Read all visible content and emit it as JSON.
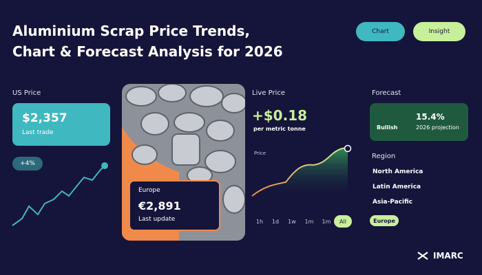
{
  "header": {
    "title_lines": [
      "Aluminium Scrap Price Trends,",
      "Chart & Forecast Analysis for 2026"
    ],
    "buttons": [
      "Chart",
      "Insight"
    ]
  },
  "us_price": {
    "label": "US Price",
    "value": "$2,357",
    "caption": "Last trade",
    "change": "+4%"
  },
  "europe": {
    "label": "Europe",
    "value": "€2,891",
    "caption": "Last update"
  },
  "live_price": {
    "label": "Live Price",
    "value": "+$0.18",
    "unit": "per metric tonne",
    "chart_label": "Price",
    "periods": [
      "1h",
      "1d",
      "1w",
      "1m",
      "1m",
      "All"
    ]
  },
  "forecast": {
    "label": "Forecast",
    "trend": "Bullish",
    "value": "15.4%",
    "caption": "2026 projection"
  },
  "region": {
    "label": "Region",
    "items": [
      "North America",
      "Latin America",
      "Asia-Pacific",
      "Europe"
    ]
  },
  "brand": "IMARC"
}
